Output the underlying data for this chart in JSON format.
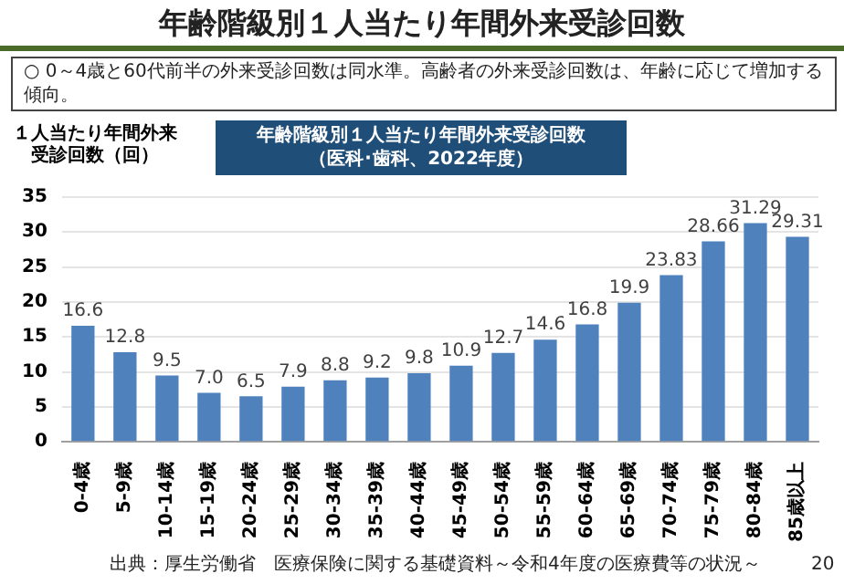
{
  "chart_data": {
    "type": "bar",
    "title": "年齢階級別１人当たり年間外来受診回数",
    "subtitle": "（医科･歯科、2022年度）",
    "ylabel": "１人当たり年間外来受診回数（回）",
    "annotations": [
      "年齢階級別１人当たり年間外来受診回数",
      "○ 0～4歳と60代前半の外来受診回数は同水準。高齢者の外来受診回数は、年齢に応じて増加する傾向。",
      "出典：厚生労働省　医療保険に関する基礎資料～令和4年度の医療費等の状況～",
      "20"
    ],
    "categories": [
      "0-4歳",
      "5-9歳",
      "10-14歳",
      "15-19歳",
      "20-24歳",
      "25-29歳",
      "30-34歳",
      "35-39歳",
      "40-44歳",
      "45-49歳",
      "50-54歳",
      "55-59歳",
      "60-64歳",
      "65-69歳",
      "70-74歳",
      "75-79歳",
      "80-84歳",
      "85歳以上"
    ],
    "values": [
      16.6,
      12.8,
      9.5,
      7.0,
      6.5,
      7.9,
      8.8,
      9.2,
      9.8,
      10.9,
      12.7,
      14.6,
      16.8,
      19.9,
      23.83,
      28.66,
      31.29,
      29.31
    ],
    "value_labels": [
      "16.6",
      "12.8",
      "9.5",
      "7.0",
      "6.5",
      "7.9",
      "8.8",
      "9.2",
      "9.8",
      "10.9",
      "12.7",
      "14.6",
      "16.8",
      "19.9",
      "23.83",
      "28.66",
      "31.29",
      "29.31"
    ],
    "color": "#4f81bd",
    "ylim": [
      0,
      35
    ],
    "yticks": [
      0,
      5,
      10,
      15,
      20,
      25,
      30,
      35
    ],
    "grid": "y",
    "legend": false
  }
}
